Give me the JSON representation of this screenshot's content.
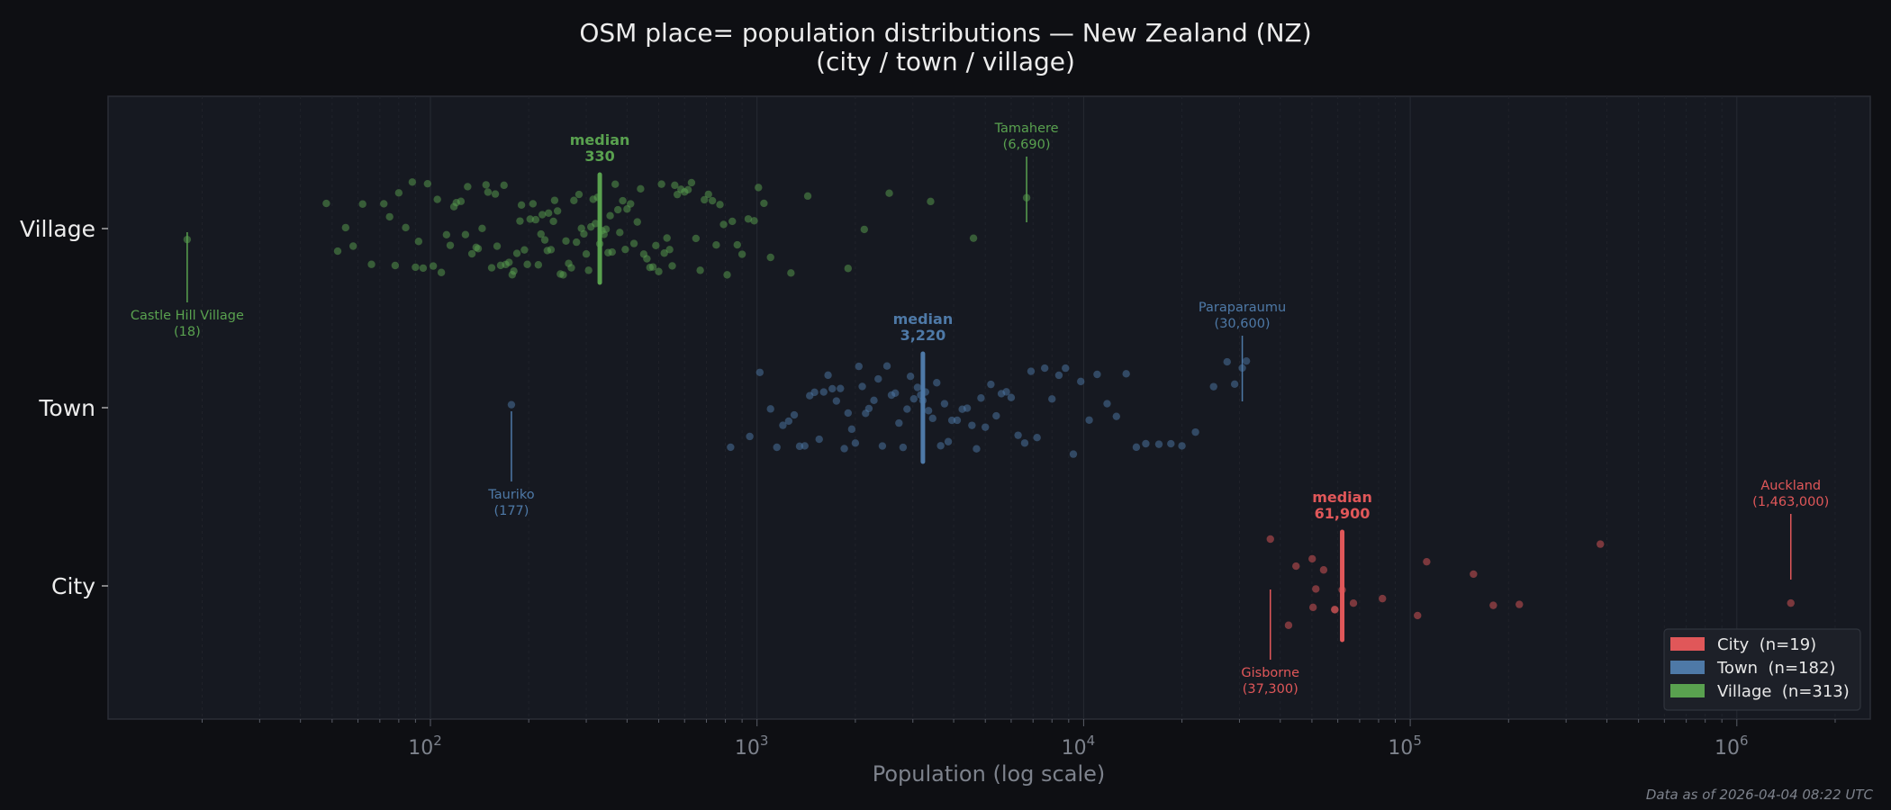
{
  "chart_data": {
    "type": "scatter",
    "title": "OSM place= population distributions — New Zealand (NZ)",
    "subtitle": "(city / town / village)",
    "xlabel": "Population (log scale)",
    "ylabel": "",
    "xscale": "log",
    "xlim": [
      10,
      2600000
    ],
    "xticks": [
      100,
      1000,
      10000,
      100000,
      1000000
    ],
    "xtick_labels": [
      {
        "base": "10",
        "exp": "2"
      },
      {
        "base": "10",
        "exp": "3"
      },
      {
        "base": "10",
        "exp": "4"
      },
      {
        "base": "10",
        "exp": "5"
      },
      {
        "base": "10",
        "exp": "6"
      }
    ],
    "categories": [
      "City",
      "Town",
      "Village"
    ],
    "grid": "vertical, log minor, dashed",
    "legend_position": "bottom-right",
    "series": [
      {
        "name": "City",
        "color": "#e05759",
        "legend": "City  (n=19)",
        "n": 19,
        "median": 61900,
        "median_label": "median",
        "median_value": "61,900",
        "values": [
          37300,
          42400,
          44700,
          50100,
          50400,
          51400,
          54300,
          58700,
          58800,
          61900,
          67000,
          82200,
          105300,
          112300,
          156200,
          179600,
          215800,
          382000,
          1463000
        ],
        "annotations": [
          {
            "name": "Auckland",
            "value_text": "(1,463,000)",
            "value": 1463000,
            "side": "above"
          },
          {
            "name": "Gisborne",
            "value_text": "(37,300)",
            "value": 37300,
            "side": "below"
          }
        ]
      },
      {
        "name": "Town",
        "color": "#4e79a7",
        "legend": "Town  (n=182)",
        "n": 182,
        "median": 3220,
        "median_label": "median",
        "median_value": "3,220",
        "values": [
          177,
          830,
          950,
          1020,
          1100,
          1150,
          1200,
          1250,
          1300,
          1350,
          1400,
          1450,
          1500,
          1550,
          1600,
          1650,
          1700,
          1750,
          1800,
          1850,
          1900,
          1950,
          2000,
          2050,
          2100,
          2150,
          2200,
          2280,
          2350,
          2420,
          2500,
          2580,
          2650,
          2720,
          2800,
          2880,
          2950,
          3020,
          3100,
          3170,
          3220,
          3280,
          3350,
          3450,
          3550,
          3650,
          3750,
          3850,
          3950,
          4100,
          4250,
          4400,
          4550,
          4700,
          4850,
          5000,
          5200,
          5400,
          5600,
          5800,
          6000,
          6300,
          6600,
          6900,
          7200,
          7600,
          8000,
          8400,
          8800,
          9300,
          9800,
          10400,
          11000,
          11800,
          12600,
          13500,
          14500,
          15500,
          17000,
          18500,
          20000,
          22000,
          25000,
          27500,
          29000,
          30600,
          31500
        ],
        "annotations": [
          {
            "name": "Paraparaumu",
            "value_text": "(30,600)",
            "value": 30600,
            "side": "above"
          },
          {
            "name": "Tauriko",
            "value_text": "(177)",
            "value": 177,
            "side": "below"
          }
        ]
      },
      {
        "name": "Village",
        "color": "#59a14f",
        "legend": "Village  (n=313)",
        "n": 313,
        "median": 330,
        "median_label": "median",
        "median_value": "330",
        "values": [
          18,
          48,
          52,
          55,
          58,
          62,
          66,
          72,
          75,
          78,
          80,
          84,
          88,
          90,
          92,
          95,
          98,
          102,
          105,
          108,
          112,
          115,
          118,
          120,
          124,
          128,
          130,
          134,
          138,
          140,
          144,
          148,
          150,
          154,
          158,
          160,
          164,
          168,
          170,
          174,
          178,
          180,
          184,
          188,
          190,
          194,
          198,
          202,
          206,
          210,
          214,
          218,
          220,
          224,
          228,
          230,
          234,
          238,
          240,
          245,
          250,
          255,
          260,
          265,
          270,
          275,
          280,
          285,
          290,
          295,
          300,
          305,
          310,
          315,
          320,
          325,
          330,
          335,
          340,
          345,
          350,
          355,
          360,
          368,
          375,
          380,
          388,
          395,
          400,
          410,
          420,
          430,
          440,
          450,
          460,
          470,
          480,
          490,
          500,
          510,
          520,
          530,
          540,
          550,
          560,
          570,
          585,
          600,
          615,
          630,
          650,
          670,
          690,
          710,
          730,
          750,
          770,
          790,
          810,
          840,
          870,
          900,
          940,
          980,
          1010,
          1050,
          1100,
          1270,
          1430,
          1900,
          2130,
          2540,
          3400,
          4600,
          6690
        ],
        "annotations": [
          {
            "name": "Tamahere",
            "value_text": "(6,690)",
            "value": 6690,
            "side": "above"
          },
          {
            "name": "Castle Hill Village",
            "value_text": "(18)",
            "value": 18,
            "side": "below"
          }
        ]
      }
    ]
  },
  "footer": "Data as of 2026-04-04 08:22 UTC",
  "colors": {
    "background": "#0e0f13",
    "plot_background": "#161921",
    "text": "#e8e8e8",
    "muted": "#7d828c"
  }
}
